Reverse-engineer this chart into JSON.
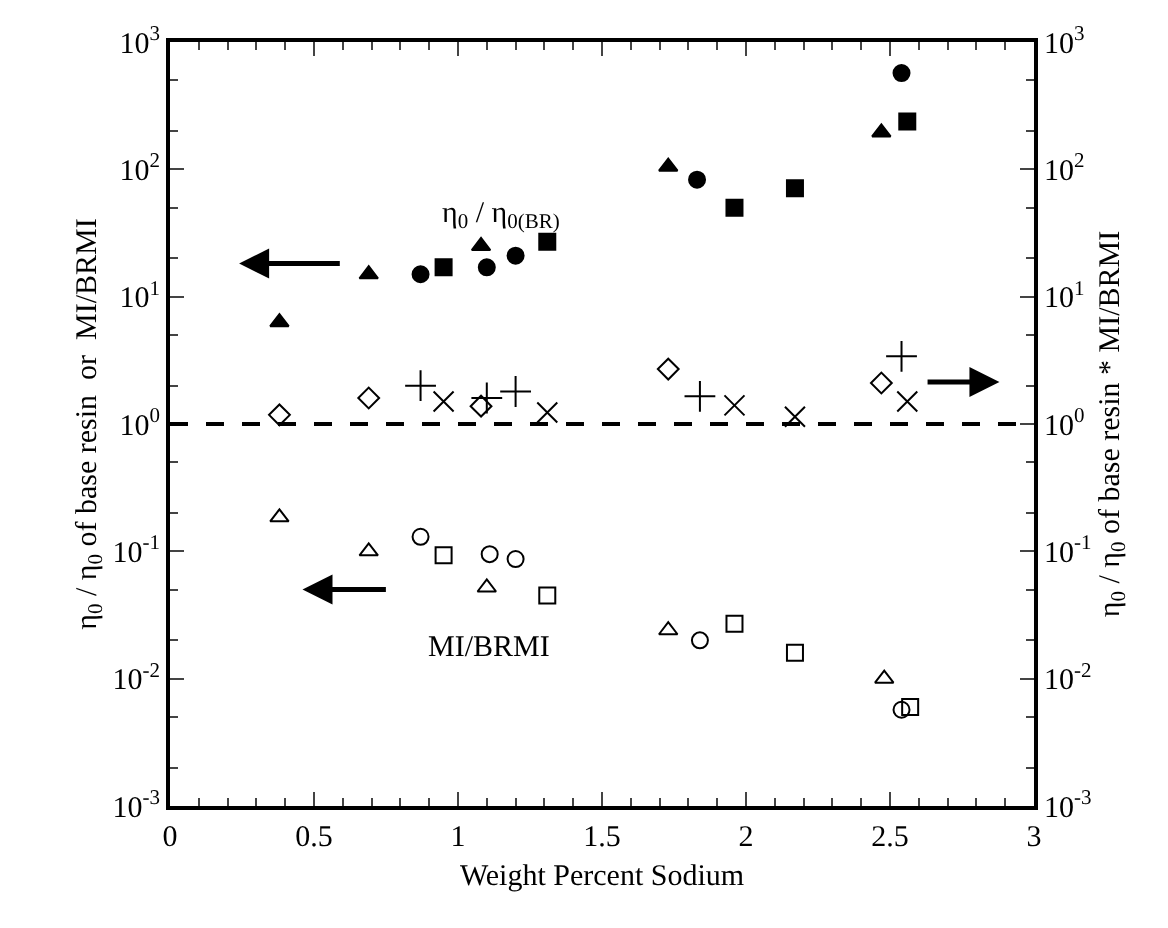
{
  "chart_data": {
    "type": "scatter",
    "xlabel": "Weight Percent Sodium",
    "ylabel": "η$_{0}$ / η$_{0}$ of base resin  or  MI/BRMI",
    "y2label": "η$_{0}$ / η$_{0}$ of base resin * MI/BRMI",
    "xlim": [
      0,
      3
    ],
    "xticks": [
      0,
      0.5,
      1,
      1.5,
      2,
      2.5,
      3
    ],
    "ylim": [
      0.001,
      1000
    ],
    "yticks": [
      {
        "value": 0.001,
        "label": "10$^{-3}$"
      },
      {
        "value": 0.01,
        "label": "10$^{-2}$"
      },
      {
        "value": 0.1,
        "label": "10$^{-1}$"
      },
      {
        "value": 1,
        "label": "10$^{0}$"
      },
      {
        "value": 10,
        "label": "10$^{1}$"
      },
      {
        "value": 100,
        "label": "10$^{2}$"
      },
      {
        "value": 1000,
        "label": "10$^{3}$"
      }
    ],
    "log": "y",
    "series": [
      {
        "color": "#000000",
        "marker": "triangle",
        "x": [
          0.38,
          0.69,
          1.08,
          1.73,
          2.47
        ],
        "values": [
          6.3,
          15,
          25,
          105,
          195
        ]
      },
      {
        "color": "#000000",
        "marker": "circle",
        "x": [
          0.87,
          1.1,
          1.2,
          1.83,
          2.54
        ],
        "values": [
          15,
          17,
          21,
          83,
          570
        ]
      },
      {
        "color": "#000000",
        "marker": "square",
        "x": [
          0.95,
          1.31,
          1.96,
          2.17,
          2.56
        ],
        "values": [
          17,
          27,
          50,
          71,
          237
        ]
      },
      {
        "color": "#000000",
        "marker": "triangle-open",
        "x": [
          0.38,
          0.69,
          1.1,
          1.73,
          2.48
        ],
        "values": [
          0.185,
          0.1,
          0.052,
          0.024,
          0.01
        ]
      },
      {
        "color": "#000000",
        "marker": "circle-open",
        "x": [
          0.87,
          1.11,
          1.2,
          1.84,
          2.54
        ],
        "values": [
          0.13,
          0.095,
          0.087,
          0.02,
          0.0057
        ]
      },
      {
        "color": "#000000",
        "marker": "square-open",
        "x": [
          0.95,
          1.31,
          1.96,
          2.17,
          2.57
        ],
        "values": [
          0.093,
          0.045,
          0.027,
          0.016,
          0.006
        ]
      },
      {
        "color": "#000000",
        "marker": "diamond-open",
        "x": [
          0.38,
          0.69,
          1.08,
          1.73,
          2.47
        ],
        "values": [
          1.18,
          1.6,
          1.38,
          2.7,
          2.1
        ]
      },
      {
        "color": "#000000",
        "marker": "plus",
        "x": [
          0.87,
          1.1,
          1.2,
          1.84,
          2.54
        ],
        "values": [
          2.0,
          1.6,
          1.8,
          1.65,
          3.4
        ]
      },
      {
        "color": "#000000",
        "marker": "x",
        "x": [
          0.95,
          1.31,
          1.96,
          2.17,
          2.56
        ],
        "values": [
          1.5,
          1.23,
          1.4,
          1.14,
          1.5
        ]
      }
    ],
    "ref_lines": [
      {
        "axis": "y",
        "value": 1,
        "color": "#000000",
        "line_style": "dashed"
      }
    ],
    "annotations": [
      "η$_{0}$ / η$_{0(BR)}$",
      "MI/BRMI"
    ]
  }
}
